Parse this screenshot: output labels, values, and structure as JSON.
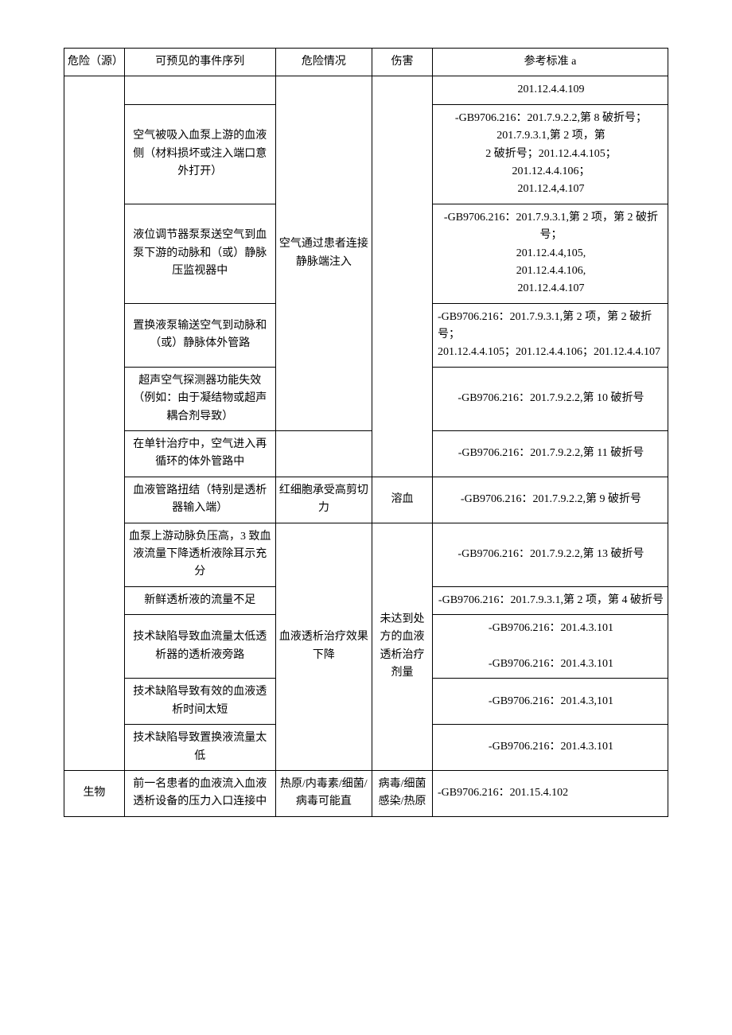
{
  "headers": {
    "hazard": "危险（源）",
    "event": "可预见的事件序列",
    "situation": "危险情况",
    "harm": "伤害",
    "ref": "参考标准 a"
  },
  "rows": [
    {
      "hazard": "",
      "event": "",
      "situation": "空气通过患者连接静脉端注入",
      "harm": "",
      "ref": "201.12.4.4.109",
      "ref_class": "ref-line"
    },
    {
      "event": "空气被吸入血泵上游的血液侧（材料损坏或注入端口意外打开）",
      "ref": "-GB9706.216：201.7.9.2.2,第 8 破折号；\n201.7.9.3.1,第 2 项，第\n2 破折号；201.12.4.4.105；\n201.12.4.4.106；\n201.12.4,4.107"
    },
    {
      "event": "液位调节器泵泵送空气到血泵下游的动脉和（或）静脉压监视器中",
      "ref": "-GB9706.216：201.7.9.3.1,第 2 项，第 2 破折号；\n201.12.4.4,105,\n201.12.4.4.106,\n201.12.4.4.107"
    },
    {
      "event": "置换液泵输送空气到动脉和（或）静脉体外管路",
      "ref": "-GB9706.216：201.7.9.3.1,第 2 项，第 2 破折号；\n201.12.4.4.105；201.12.4.4.106；201.12.4.4.107",
      "ref_class": "ref-left"
    },
    {
      "event": "超声空气探测器功能失效（例如：由于凝结物或超声耦合剂导致）",
      "ref": "-GB9706.216：201.7.9.2.2,第 10 破折号"
    },
    {
      "event": "在单针治疗中，空气进入再循环的体外管路中",
      "situation": "",
      "harm": "",
      "ref": "-GB9706.216：201.7.9.2.2,第 11 破折号"
    },
    {
      "event": "血液管路扭结（特别是透析器输入端）",
      "situation": "红细胞承受高剪切力",
      "harm": "溶血",
      "ref": "-GB9706.216：201.7.9.2.2,第 9 破折号"
    },
    {
      "event": "血泵上游动脉负压高，3 致血液流量下降透析液除耳示充分",
      "situation": "血液透析治疗效果下降",
      "harm": "未达到处方的血液透析治疗剂量",
      "ref": "-GB9706.216：201.7.9.2.2,第 13 破折号"
    },
    {
      "event": "新鲜透析液的流量不足",
      "ref": "-GB9706.216：201.7.9.3.1,第 2 项，第 4 破折号"
    },
    {
      "event": "技术缺陷导致血流量太低透析器的透析液旁路",
      "ref": "-GB9706.216：201.4.3.101\n\n-GB9706.216：201.4.3.101"
    },
    {
      "event": "技术缺陷导致有效的血液透析时间太短",
      "ref": "-GB9706.216：201.4.3,101"
    },
    {
      "event": "技术缺陷导致置换液流量太低",
      "ref": "-GB9706.216：201.4.3.101"
    },
    {
      "hazard": "生物",
      "event": "前一名患者的血液流入血液透析设备的压力入口连接中",
      "situation": "热原/内毒素/细菌/病毒可能直",
      "harm": "病毒/细菌感染/热原",
      "ref": "-GB9706.216：201.15.4.102",
      "ref_class": "ref-left"
    }
  ]
}
